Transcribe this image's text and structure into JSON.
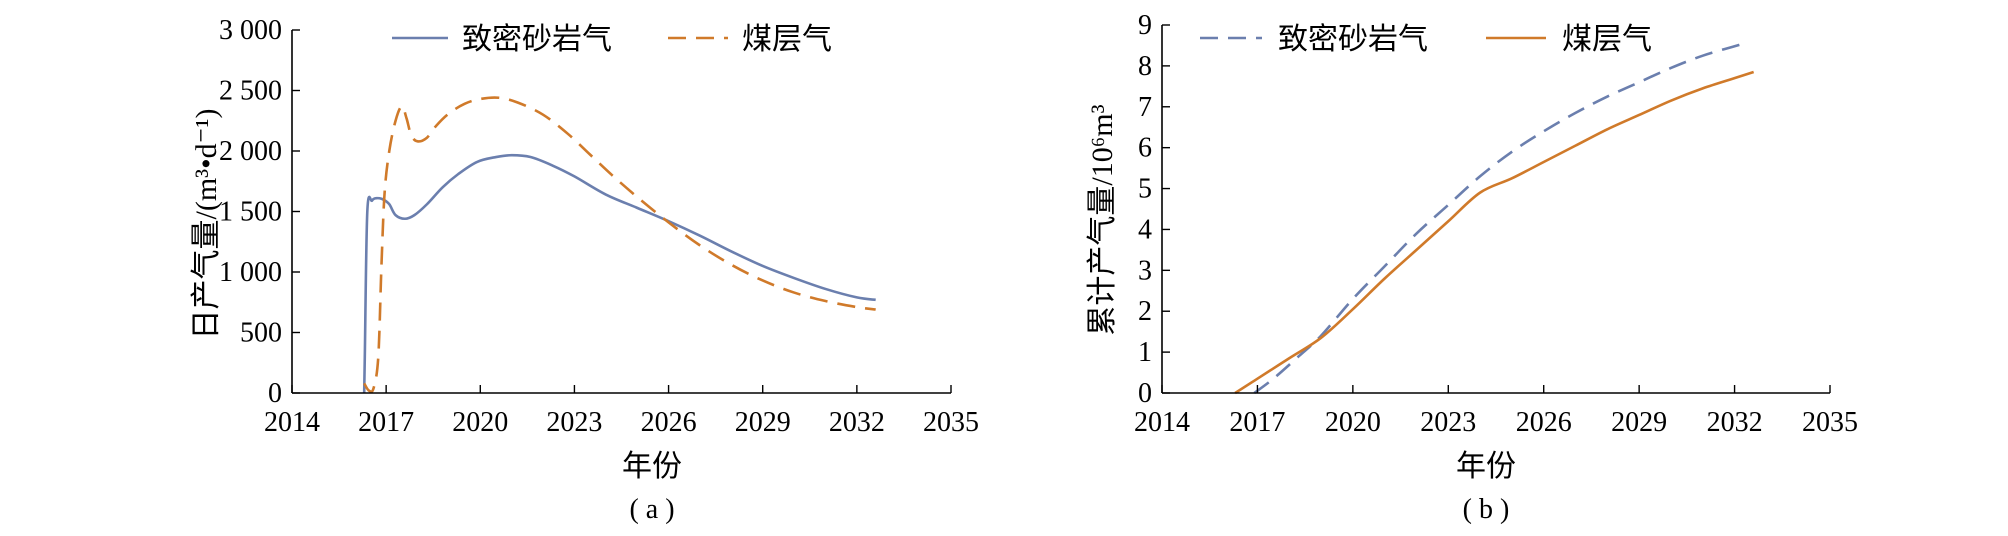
{
  "chart_data": [
    {
      "type": "line",
      "panel_label": "( a )",
      "xlabel": "年份",
      "ylabel": "日产气量/(m³•d⁻¹)",
      "xlim": [
        2014,
        2035
      ],
      "ylim": [
        0,
        3000
      ],
      "xticks": [
        2014,
        2017,
        2020,
        2023,
        2026,
        2029,
        2032,
        2035
      ],
      "xtick_labels": [
        "2014",
        "2017",
        "2020",
        "2023",
        "2026",
        "2029",
        "2032",
        "2035"
      ],
      "yticks": [
        0,
        500,
        1000,
        1500,
        2000,
        2500,
        3000
      ],
      "ytick_labels": [
        "0",
        "500",
        "1 000",
        "1 500",
        "2 000",
        "2 500",
        "3 000"
      ],
      "legend_position": "top",
      "series": [
        {
          "name": "致密砂岩气",
          "color": "#6b7fae",
          "dash": "solid",
          "x": [
            2016.3,
            2016.32,
            2016.4,
            2016.55,
            2016.7,
            2016.9,
            2017.1,
            2017.3,
            2017.6,
            2017.9,
            2018.3,
            2018.8,
            2019.3,
            2019.9,
            2020.5,
            2021.0,
            2021.6,
            2022.3,
            2023.0,
            2024.0,
            2025.0,
            2026.0,
            2027.0,
            2028.0,
            2029.0,
            2030.0,
            2031.0,
            2032.0,
            2032.6
          ],
          "y": [
            0,
            300,
            1500,
            1590,
            1610,
            1600,
            1560,
            1470,
            1440,
            1470,
            1560,
            1700,
            1810,
            1910,
            1950,
            1965,
            1950,
            1880,
            1790,
            1640,
            1530,
            1420,
            1300,
            1170,
            1050,
            950,
            860,
            790,
            770
          ]
        },
        {
          "name": "煤层气",
          "color": "#d07a2a",
          "dash": "dashed",
          "x": [
            2016.3,
            2016.45,
            2016.6,
            2016.75,
            2016.85,
            2016.95,
            2017.1,
            2017.3,
            2017.5,
            2017.65,
            2017.8,
            2018.0,
            2018.3,
            2018.6,
            2019.0,
            2019.5,
            2020.0,
            2020.6,
            2021.2,
            2022.0,
            2022.8,
            2023.5,
            2024.2,
            2025.0,
            2026.0,
            2027.0,
            2028.0,
            2029.0,
            2030.0,
            2031.0,
            2032.0,
            2032.6
          ],
          "y": [
            80,
            20,
            40,
            300,
            1050,
            1650,
            2000,
            2250,
            2370,
            2270,
            2130,
            2080,
            2110,
            2210,
            2310,
            2390,
            2430,
            2440,
            2400,
            2300,
            2140,
            1970,
            1800,
            1620,
            1410,
            1220,
            1060,
            930,
            830,
            760,
            710,
            690
          ]
        }
      ]
    },
    {
      "type": "line",
      "panel_label": "( b )",
      "xlabel": "年份",
      "ylabel": "累计产气量/10⁶m³",
      "xlim": [
        2014,
        2035
      ],
      "ylim": [
        0,
        9
      ],
      "xticks": [
        2014,
        2017,
        2020,
        2023,
        2026,
        2029,
        2032,
        2035
      ],
      "xtick_labels": [
        "2014",
        "2017",
        "2020",
        "2023",
        "2026",
        "2029",
        "2032",
        "2035"
      ],
      "yticks": [
        0,
        1,
        2,
        3,
        4,
        5,
        6,
        7,
        8,
        9
      ],
      "ytick_labels": [
        "0",
        "1",
        "2",
        "3",
        "4",
        "5",
        "6",
        "7",
        "8",
        "9"
      ],
      "legend_position": "top",
      "series": [
        {
          "name": "致密砂岩气",
          "color": "#6b7fae",
          "dash": "dashed",
          "x": [
            2016.9,
            2017.5,
            2018.3,
            2019.0,
            2020.0,
            2021.0,
            2022.0,
            2023.0,
            2024.0,
            2025.0,
            2026.0,
            2027.0,
            2028.0,
            2029.0,
            2030.0,
            2031.0,
            2032.0,
            2032.3
          ],
          "y": [
            0,
            0.35,
            0.9,
            1.4,
            2.3,
            3.1,
            3.9,
            4.6,
            5.3,
            5.9,
            6.4,
            6.85,
            7.25,
            7.6,
            7.95,
            8.25,
            8.48,
            8.55
          ]
        },
        {
          "name": "煤层气",
          "color": "#d07a2a",
          "dash": "solid",
          "x": [
            2016.3,
            2017.0,
            2018.0,
            2019.0,
            2020.0,
            2021.0,
            2022.0,
            2023.0,
            2024.0,
            2025.0,
            2026.0,
            2027.0,
            2028.0,
            2029.0,
            2030.0,
            2031.0,
            2032.0,
            2032.6
          ],
          "y": [
            0,
            0.35,
            0.85,
            1.35,
            2.05,
            2.8,
            3.5,
            4.2,
            4.9,
            5.25,
            5.65,
            6.05,
            6.45,
            6.8,
            7.15,
            7.45,
            7.7,
            7.85
          ]
        }
      ]
    }
  ]
}
